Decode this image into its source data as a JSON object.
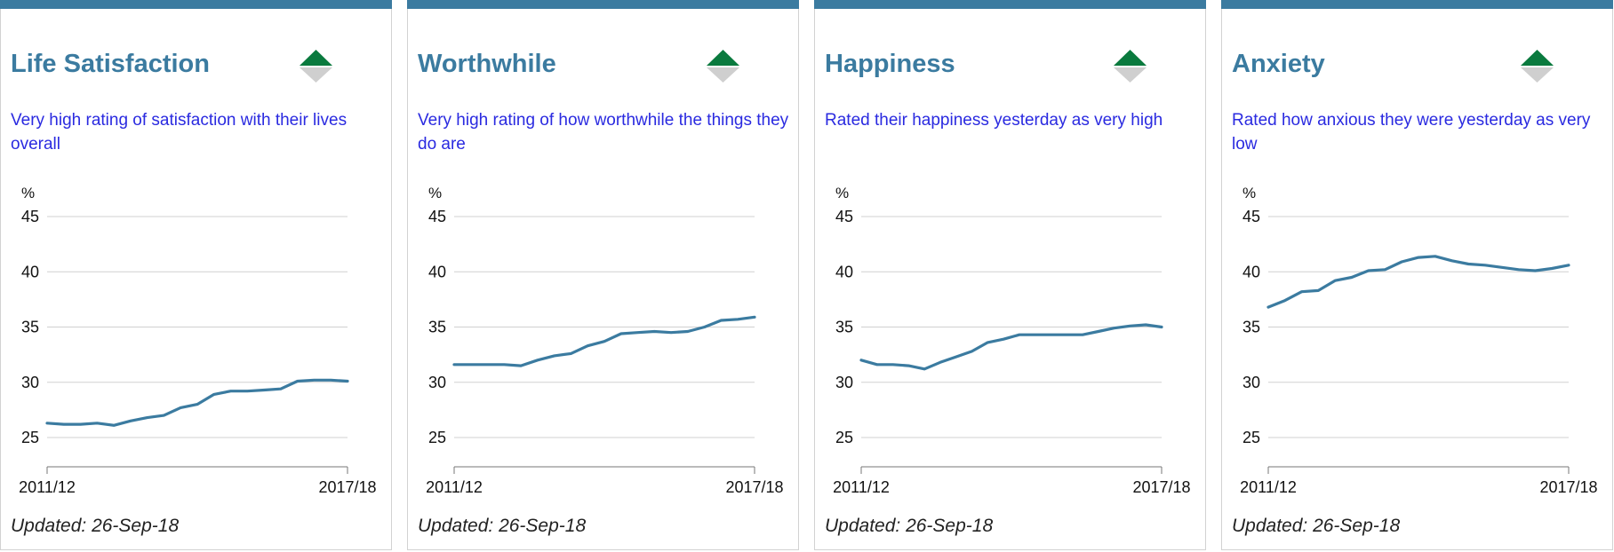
{
  "colors": {
    "accent": "#3b7ba0",
    "description_text": "#2a2ae0",
    "trend_up": "#0a7a3e",
    "trend_down": "#cfcfcf",
    "grid": "#d0d0d0"
  },
  "cards": [
    {
      "title": "Life Satisfaction",
      "description": "Very high rating of satisfaction with their lives overall",
      "trend_icon": "trend-up-icon",
      "updated": "Updated: 26-Sep-18"
    },
    {
      "title": "Worthwhile",
      "description": "Very high rating of how worthwhile the things they do are",
      "trend_icon": "trend-up-icon",
      "updated": "Updated: 26-Sep-18"
    },
    {
      "title": "Happiness",
      "description": "Rated their happiness yesterday as very high",
      "trend_icon": "trend-up-icon",
      "updated": "Updated: 26-Sep-18"
    },
    {
      "title": "Anxiety",
      "description": "Rated how anxious they were yesterday as very low",
      "trend_icon": "trend-up-icon",
      "updated": "Updated: 26-Sep-18"
    }
  ],
  "chart_data": [
    {
      "type": "line",
      "ylabel": "%",
      "yticks": [
        45,
        40,
        35,
        30,
        25
      ],
      "ylim": [
        23,
        45
      ],
      "x_tick_labels": [
        "2011/12",
        "2017/18"
      ],
      "grid": true,
      "series": [
        {
          "values": [
            26.3,
            26.2,
            26.2,
            26.3,
            26.1,
            26.5,
            26.8,
            27.0,
            27.7,
            28.0,
            28.9,
            29.2,
            29.2,
            29.3,
            29.4,
            30.1,
            30.2,
            30.2,
            30.1
          ]
        }
      ]
    },
    {
      "type": "line",
      "ylabel": "%",
      "yticks": [
        45,
        40,
        35,
        30,
        25
      ],
      "ylim": [
        23,
        45
      ],
      "x_tick_labels": [
        "2011/12",
        "2017/18"
      ],
      "grid": true,
      "series": [
        {
          "values": [
            31.6,
            31.6,
            31.6,
            31.6,
            31.5,
            32.0,
            32.4,
            32.6,
            33.3,
            33.7,
            34.4,
            34.5,
            34.6,
            34.5,
            34.6,
            35.0,
            35.6,
            35.7,
            35.9
          ]
        }
      ]
    },
    {
      "type": "line",
      "ylabel": "%",
      "yticks": [
        45,
        40,
        35,
        30,
        25
      ],
      "ylim": [
        23,
        45
      ],
      "x_tick_labels": [
        "2011/12",
        "2017/18"
      ],
      "grid": true,
      "series": [
        {
          "values": [
            32.0,
            31.6,
            31.6,
            31.5,
            31.2,
            31.8,
            32.3,
            32.8,
            33.6,
            33.9,
            34.3,
            34.3,
            34.3,
            34.3,
            34.3,
            34.6,
            34.9,
            35.1,
            35.2,
            35.0
          ]
        }
      ]
    },
    {
      "type": "line",
      "ylabel": "%",
      "yticks": [
        45,
        40,
        35,
        30,
        25
      ],
      "ylim": [
        23,
        45
      ],
      "x_tick_labels": [
        "2011/12",
        "2017/18"
      ],
      "grid": true,
      "series": [
        {
          "values": [
            36.8,
            37.4,
            38.2,
            38.3,
            39.2,
            39.5,
            40.1,
            40.2,
            40.9,
            41.3,
            41.4,
            41.0,
            40.7,
            40.6,
            40.4,
            40.2,
            40.1,
            40.3,
            40.6
          ]
        }
      ]
    }
  ]
}
